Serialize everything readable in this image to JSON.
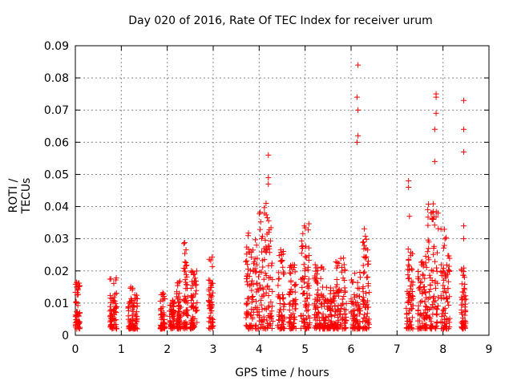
{
  "chart_data": {
    "type": "scatter",
    "title": "Day 020 of 2016, Rate Of TEC Index for receiver urum",
    "xlabel": "GPS time / hours",
    "ylabel": "ROTI / TECUs",
    "xlim": [
      0,
      9
    ],
    "ylim": [
      0,
      0.09
    ],
    "xticks": [
      "0",
      "1",
      "2",
      "3",
      "4",
      "5",
      "6",
      "7",
      "8",
      "9"
    ],
    "yticks": [
      "0",
      "0.01",
      "0.02",
      "0.03",
      "0.04",
      "0.05",
      "0.06",
      "0.07",
      "0.08",
      "0.09"
    ],
    "grid": true,
    "marker": "+",
    "marker_color": "#ff0000",
    "series": [
      {
        "name": "ROTI",
        "clusters": [
          {
            "x": [
              0.0,
              0.1
            ],
            "ymax": 0.017
          },
          {
            "x": [
              0.75,
              0.9
            ],
            "ymax": 0.018
          },
          {
            "x": [
              1.15,
              1.35
            ],
            "ymax": 0.015
          },
          {
            "x": [
              1.85,
              1.95
            ],
            "ymax": 0.014
          },
          {
            "x": [
              2.05,
              2.15
            ],
            "ymax": 0.011
          },
          {
            "x": [
              2.2,
              2.3
            ],
            "ymax": 0.017
          },
          {
            "x": [
              2.35,
              2.45
            ],
            "ymax": 0.029
          },
          {
            "x": [
              2.5,
              2.65
            ],
            "ymax": 0.02
          },
          {
            "x": [
              2.9,
              3.0
            ],
            "ymax": 0.025
          },
          {
            "x": [
              3.7,
              4.0
            ],
            "ymax": 0.032
          },
          {
            "x": [
              4.0,
              4.3
            ],
            "ymax": 0.04
          },
          {
            "x": [
              4.4,
              4.55
            ],
            "ymax": 0.028
          },
          {
            "x": [
              4.65,
              4.8
            ],
            "ymax": 0.022
          },
          {
            "x": [
              4.9,
              5.1
            ],
            "ymax": 0.035
          },
          {
            "x": [
              5.2,
              5.4
            ],
            "ymax": 0.023
          },
          {
            "x": [
              5.4,
              5.65
            ],
            "ymax": 0.015
          },
          {
            "x": [
              5.65,
              5.9
            ],
            "ymax": 0.024
          },
          {
            "x": [
              6.0,
              6.2
            ],
            "ymax": 0.02
          },
          {
            "x": [
              6.25,
              6.4
            ],
            "ymax": 0.034
          },
          {
            "x": [
              7.2,
              7.35
            ],
            "ymax": 0.028
          },
          {
            "x": [
              7.45,
              7.65
            ],
            "ymax": 0.025
          },
          {
            "x": [
              7.65,
              7.9
            ],
            "ymax": 0.041
          },
          {
            "x": [
              7.95,
              8.15
            ],
            "ymax": 0.033
          },
          {
            "x": [
              8.4,
              8.5
            ],
            "ymax": 0.021
          }
        ],
        "outliers": [
          {
            "x": 4.2,
            "y": 0.056
          },
          {
            "x": 4.2,
            "y": 0.049
          },
          {
            "x": 4.2,
            "y": 0.047
          },
          {
            "x": 4.15,
            "y": 0.041
          },
          {
            "x": 6.15,
            "y": 0.084
          },
          {
            "x": 6.13,
            "y": 0.074
          },
          {
            "x": 6.15,
            "y": 0.07
          },
          {
            "x": 6.15,
            "y": 0.062
          },
          {
            "x": 6.13,
            "y": 0.06
          },
          {
            "x": 7.25,
            "y": 0.048
          },
          {
            "x": 7.25,
            "y": 0.046
          },
          {
            "x": 7.27,
            "y": 0.037
          },
          {
            "x": 7.85,
            "y": 0.075
          },
          {
            "x": 7.85,
            "y": 0.074
          },
          {
            "x": 7.85,
            "y": 0.069
          },
          {
            "x": 7.82,
            "y": 0.064
          },
          {
            "x": 7.82,
            "y": 0.054
          },
          {
            "x": 8.45,
            "y": 0.073
          },
          {
            "x": 8.45,
            "y": 0.064
          },
          {
            "x": 8.45,
            "y": 0.057
          },
          {
            "x": 8.45,
            "y": 0.034
          },
          {
            "x": 8.45,
            "y": 0.03
          }
        ]
      }
    ]
  }
}
